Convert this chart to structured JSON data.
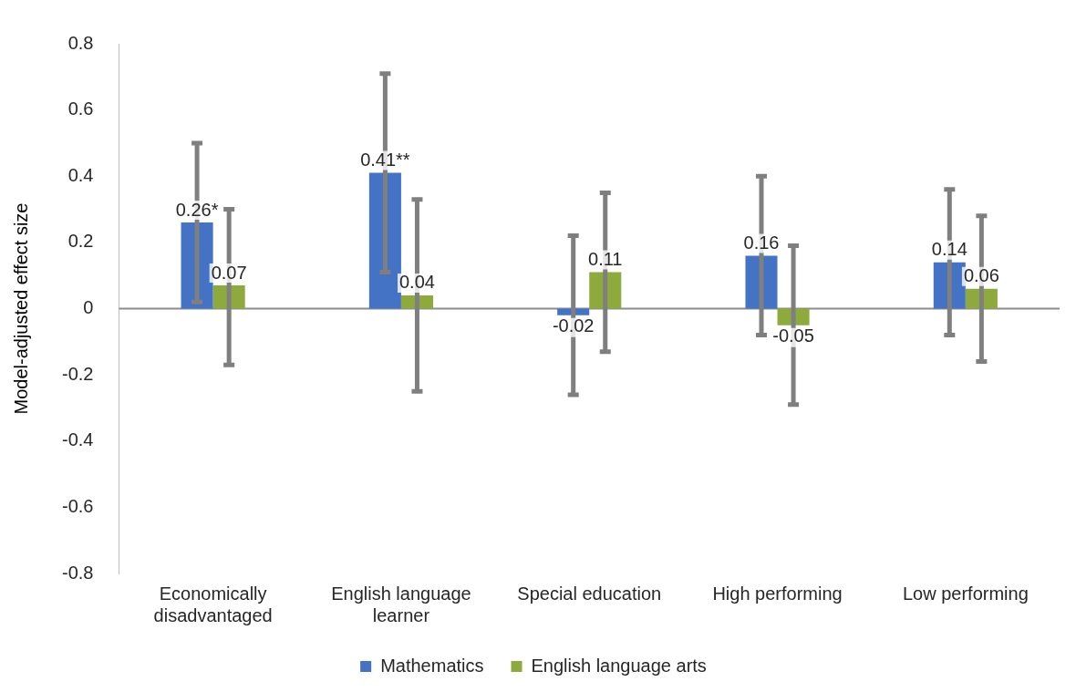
{
  "chart_data": {
    "type": "bar",
    "ylabel": "Model-adjusted effect size",
    "categories": [
      "Economically disadvantaged",
      "English language learner",
      "Special education",
      "High performing",
      "Low performing"
    ],
    "series": [
      {
        "name": "Mathematics",
        "color": "#4472c4",
        "values": [
          0.26,
          0.41,
          -0.02,
          0.16,
          0.14
        ],
        "errors": [
          [
            0.02,
            0.5
          ],
          [
            0.11,
            0.71
          ],
          [
            -0.26,
            0.22
          ],
          [
            -0.08,
            0.4
          ],
          [
            -0.08,
            0.36
          ]
        ],
        "value_labels": [
          "0.26*",
          "0.41**",
          "-0.02",
          "0.16",
          "0.14"
        ]
      },
      {
        "name": "English language arts",
        "color": "#8faa3c",
        "values": [
          0.07,
          0.04,
          0.11,
          -0.05,
          0.06
        ],
        "errors": [
          [
            -0.17,
            0.3
          ],
          [
            -0.25,
            0.33
          ],
          [
            -0.13,
            0.35
          ],
          [
            -0.29,
            0.19
          ],
          [
            -0.16,
            0.28
          ]
        ],
        "value_labels": [
          "0.07",
          "0.04",
          "0.11",
          "-0.05",
          "0.06"
        ]
      }
    ],
    "ylim": [
      -0.8,
      0.8
    ],
    "yticks": [
      -0.8,
      -0.6,
      -0.4,
      -0.2,
      0,
      0.2,
      0.4,
      0.6,
      0.8
    ],
    "legend": "bottom"
  }
}
